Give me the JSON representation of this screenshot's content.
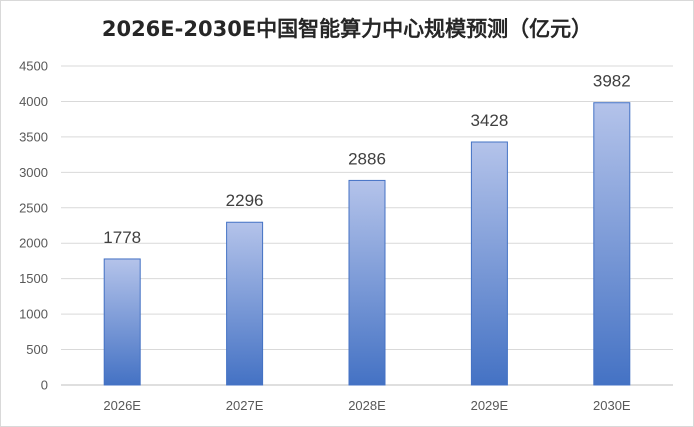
{
  "chart_data": {
    "type": "bar",
    "title": "2026E-2030E中国智能算力中心规模预测（亿元）",
    "categories": [
      "2026E",
      "2027E",
      "2028E",
      "2029E",
      "2030E"
    ],
    "series": [
      {
        "values": [
          1778,
          2296,
          2886,
          3428,
          3982
        ]
      }
    ],
    "ylim": [
      0,
      4500
    ],
    "yticks": [
      0,
      500,
      1000,
      1500,
      2000,
      2500,
      3000,
      3500,
      4000,
      4500
    ],
    "grid": true,
    "legend": "none",
    "colors": {
      "bar_top": "#b4c3ea",
      "bar_bottom": "#4472c4",
      "grid": "#d9d9d9",
      "axis": "#bfbfbf"
    }
  }
}
